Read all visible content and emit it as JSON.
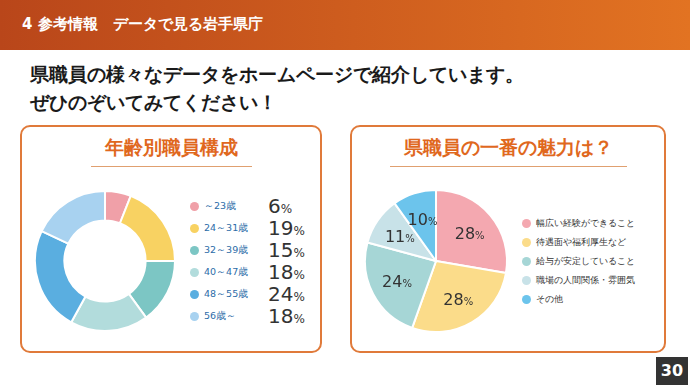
{
  "header": "4 参考情報　データで見る岩手県庁",
  "subtitle": [
    "県職員の様々なデータをホームページで紹介しています。",
    "ぜひのぞいてみてください！"
  ],
  "page_number": "30",
  "chart_data": [
    {
      "type": "doughnut",
      "title": "年齢別職員構成",
      "categories": [
        "～23歳",
        "24～31歳",
        "32～39歳",
        "40～47歳",
        "48～55歳",
        "56歳～"
      ],
      "values": [
        6,
        19,
        15,
        18,
        24,
        18
      ],
      "value_labels": [
        "6%",
        "19%",
        "15%",
        "18%",
        "24%",
        "18%"
      ],
      "colors": [
        "#f0a0a8",
        "#f8d262",
        "#7cc6c4",
        "#b2dcdc",
        "#5aaee0",
        "#a8d2f0"
      ],
      "legend": "right"
    },
    {
      "type": "pie",
      "title": "県職員の一番の魅力は？",
      "categories": [
        "幅広い経験ができること",
        "待遇面や福利厚生など",
        "給与が安定していること",
        "職場の人間関係・雰囲気",
        "その他"
      ],
      "values": [
        28,
        28,
        24,
        11,
        10
      ],
      "value_labels": [
        "28%",
        "28%",
        "24%",
        "11%",
        "10%"
      ],
      "colors": [
        "#f4a8b0",
        "#fbdc8a",
        "#a6d6d6",
        "#c8e2e8",
        "#6cc4ec"
      ],
      "data_labels": true,
      "legend": "right"
    }
  ]
}
